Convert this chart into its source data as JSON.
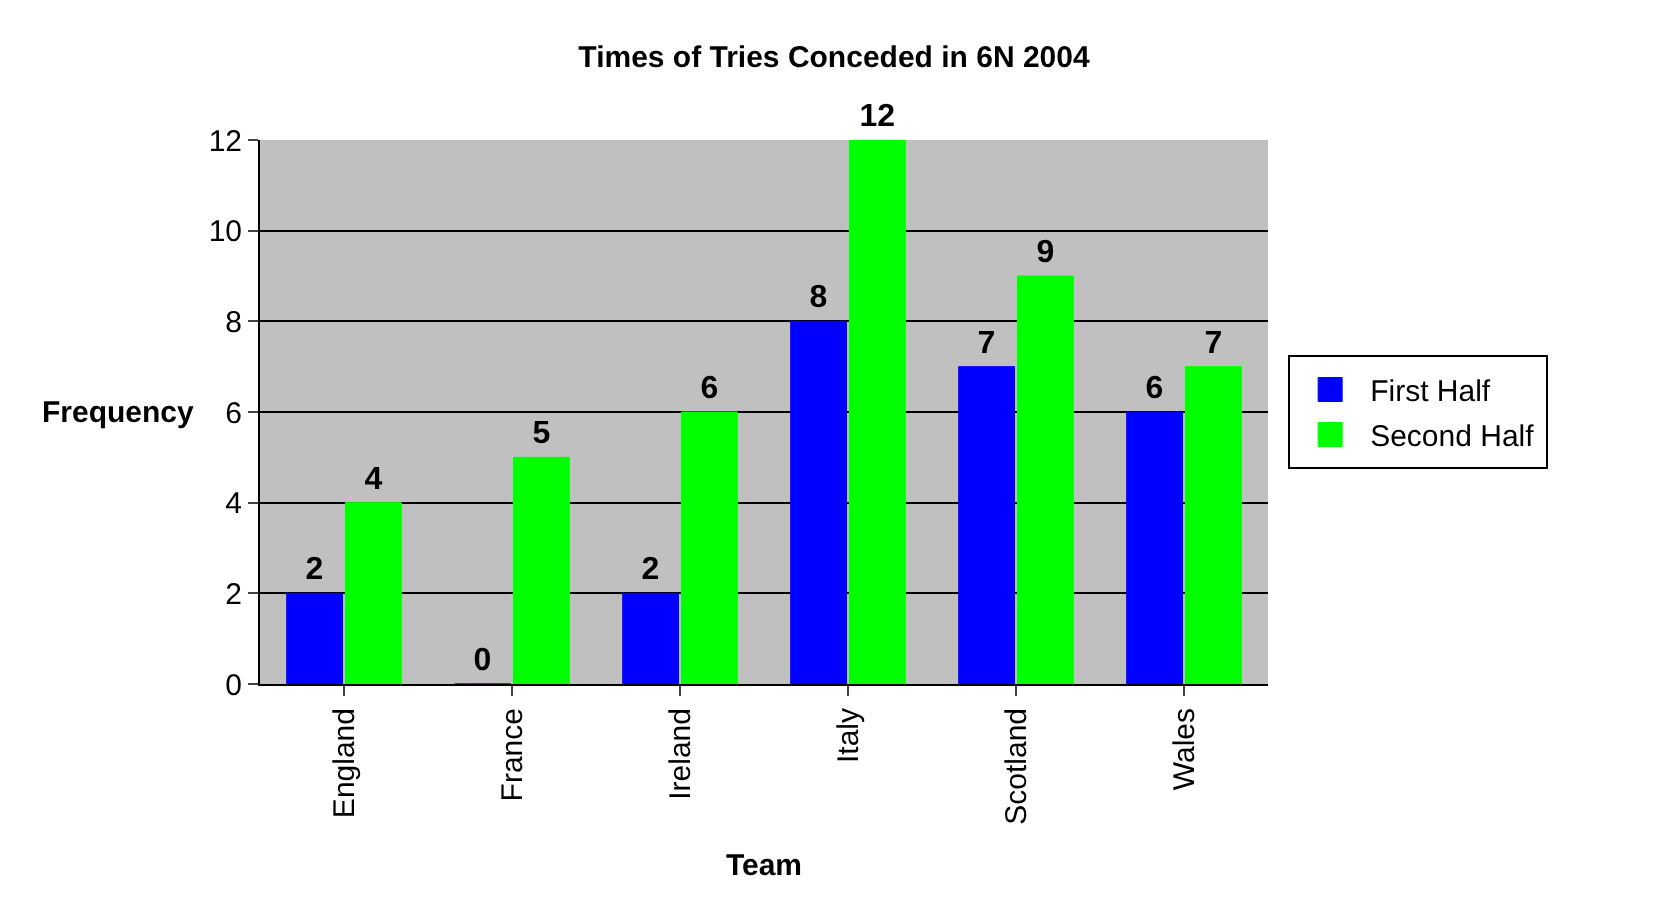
{
  "chart_data": {
    "type": "bar",
    "title": "Times of Tries Conceded in 6N 2004",
    "xlabel": "Team",
    "ylabel": "Frequency",
    "categories": [
      "England",
      "France",
      "Ireland",
      "Italy",
      "Scotland",
      "Wales"
    ],
    "series": [
      {
        "name": "First Half",
        "color": "#0000ff",
        "values": [
          2,
          0,
          2,
          8,
          7,
          6
        ]
      },
      {
        "name": "Second Half",
        "color": "#00ff00",
        "values": [
          4,
          5,
          6,
          12,
          9,
          7
        ]
      }
    ],
    "ylim": [
      0,
      12
    ],
    "yticks": [
      0,
      2,
      4,
      6,
      8,
      10,
      12
    ],
    "grid": "y",
    "legend": "right",
    "data_labels": true
  }
}
